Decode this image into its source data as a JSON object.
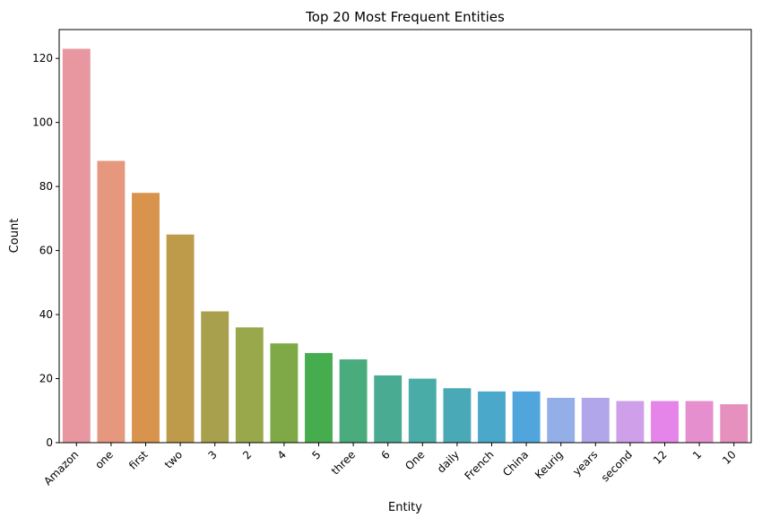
{
  "chart_data": {
    "type": "bar",
    "title": "Top 20 Most Frequent Entities",
    "xlabel": "Entity",
    "ylabel": "Count",
    "ylim": [
      0,
      129
    ],
    "yticks": [
      0,
      20,
      40,
      60,
      80,
      100,
      120
    ],
    "grid": false,
    "categories": [
      "Amazon",
      "one",
      "first",
      "two",
      "3",
      "2",
      "4",
      "5",
      "three",
      "6",
      "One",
      "daily",
      "French",
      "China",
      "Keurig",
      "years",
      "second",
      "12",
      "1",
      "10"
    ],
    "values": [
      123,
      88,
      78,
      65,
      41,
      36,
      31,
      28,
      26,
      21,
      20,
      17,
      16,
      16,
      14,
      14,
      13,
      13,
      13,
      12
    ],
    "colors": [
      "#e8969f",
      "#e6987f",
      "#d8944c",
      "#bd9b4b",
      "#a8a04c",
      "#98a84b",
      "#7ea946",
      "#46ad4f",
      "#4aab7d",
      "#4aab93",
      "#4aaca6",
      "#4aa9b7",
      "#4aa9cb",
      "#51a5dd",
      "#94aee8",
      "#b2a6ea",
      "#cf9fe9",
      "#e685e9",
      "#e68fcf",
      "#e690bd"
    ]
  }
}
